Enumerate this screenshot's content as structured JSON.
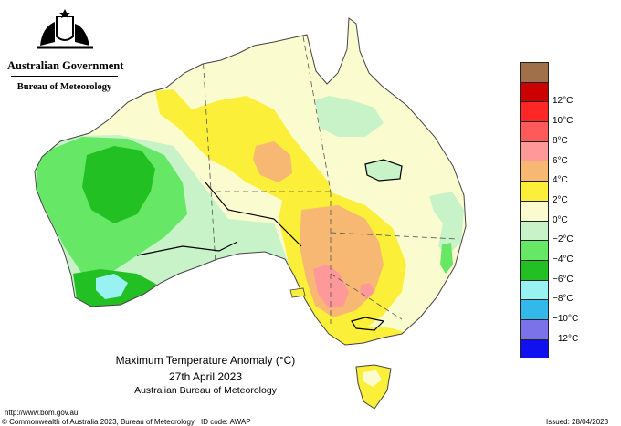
{
  "header": {
    "government": "Australian Government",
    "bureau": "Bureau of Meteorology"
  },
  "map": {
    "title": "Maximum Temperature Anomaly (°C)",
    "date": "27th April 2023",
    "organisation": "Australian Bureau of Meteorology"
  },
  "legend": {
    "items": [
      {
        "label": "",
        "color": "#a0704a"
      },
      {
        "label": "12°C",
        "color": "#cc0000"
      },
      {
        "label": "10°C",
        "color": "#ff2626"
      },
      {
        "label": "8°C",
        "color": "#ff5a5a"
      },
      {
        "label": "6°C",
        "color": "#ff9999"
      },
      {
        "label": "4°C",
        "color": "#f6b872"
      },
      {
        "label": "2°C",
        "color": "#fbef3a"
      },
      {
        "label": "0°C",
        "color": "#fbfbd0"
      },
      {
        "label": "−2°C",
        "color": "#c8f3c8"
      },
      {
        "label": "−4°C",
        "color": "#66e866"
      },
      {
        "label": "−6°C",
        "color": "#22c022"
      },
      {
        "label": "−8°C",
        "color": "#99f2f2"
      },
      {
        "label": "−10°C",
        "color": "#33b8ea"
      },
      {
        "label": "−12°C",
        "color": "#7b72ea"
      },
      {
        "label": "",
        "color": "#1010f0"
      }
    ]
  },
  "footer": {
    "url": "http://www.bom.gov.au",
    "copyright": "© Commonwealth of Australia 2023, Bureau of Meteorology",
    "id_code": "ID code: AWAP",
    "issued": "Issued: 28/04/2023"
  }
}
